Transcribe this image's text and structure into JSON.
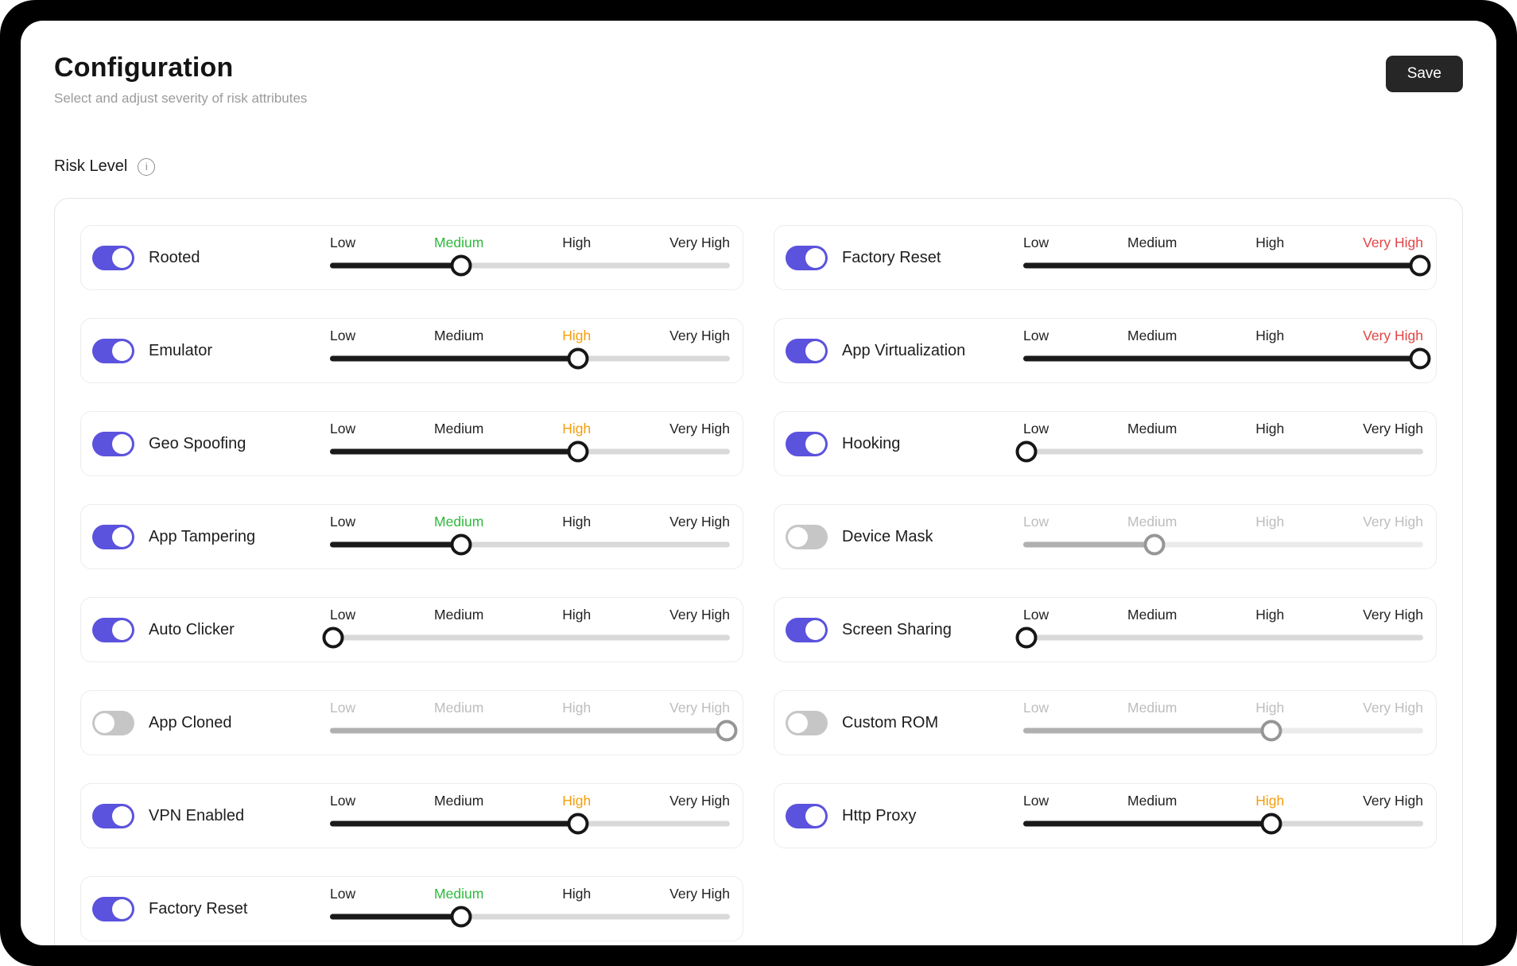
{
  "header": {
    "title": "Configuration",
    "subtitle": "Select and adjust severity of risk attributes",
    "save_label": "Save"
  },
  "section": {
    "label": "Risk Level",
    "info_icon": "i"
  },
  "severity_labels": [
    "Low",
    "Medium",
    "High",
    "Very High"
  ],
  "severity_positions": {
    "Low": 0.8,
    "Medium": 32.8,
    "High": 62,
    "Very High": 99.3
  },
  "colors": {
    "accent": "#5b52dd",
    "toggle_off": "#c6c6c6",
    "severity_active": {
      "Low": "#1f1f1f",
      "Medium": "#2eb93c",
      "High": "#f59e0b",
      "Very High": "#e24444"
    },
    "label_default": "#222222",
    "label_disabled": "#bdbdbd",
    "name_disabled": "#1d1d1d"
  },
  "columns": {
    "left": [
      {
        "name": "Rooted",
        "enabled": true,
        "severity": "Medium"
      },
      {
        "name": "Emulator",
        "enabled": true,
        "severity": "High"
      },
      {
        "name": "Geo Spoofing",
        "enabled": true,
        "severity": "High"
      },
      {
        "name": "App Tampering",
        "enabled": true,
        "severity": "Medium"
      },
      {
        "name": "Auto Clicker",
        "enabled": true,
        "severity": "Low"
      },
      {
        "name": "App Cloned",
        "enabled": false,
        "severity": "Very High"
      },
      {
        "name": "VPN Enabled",
        "enabled": true,
        "severity": "High"
      },
      {
        "name": "Factory Reset",
        "enabled": true,
        "severity": "Medium"
      }
    ],
    "right": [
      {
        "name": "Factory Reset",
        "enabled": true,
        "severity": "Very High"
      },
      {
        "name": "App Virtualization",
        "enabled": true,
        "severity": "Very High"
      },
      {
        "name": "Hooking",
        "enabled": true,
        "severity": "Low"
      },
      {
        "name": "Device Mask",
        "enabled": false,
        "severity": "Medium"
      },
      {
        "name": "Screen Sharing",
        "enabled": true,
        "severity": "Low"
      },
      {
        "name": "Custom ROM",
        "enabled": false,
        "severity": "High"
      },
      {
        "name": "Http Proxy",
        "enabled": true,
        "severity": "High"
      }
    ]
  }
}
